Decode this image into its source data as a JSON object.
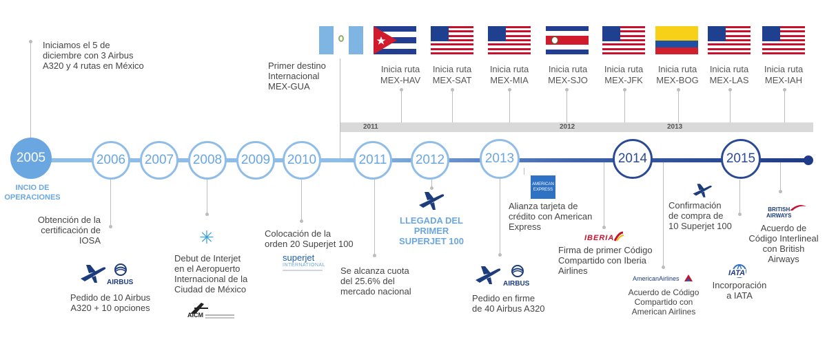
{
  "colors": {
    "light_blue": "#6aa6df",
    "circle_light_border": "#8fbde8",
    "dark_blue": "#2b4a94",
    "navy": "#1d3c7c",
    "gray_band": "#d9d9d9",
    "connector_gray": "#bcbcbc"
  },
  "years": [
    "2005",
    "2006",
    "2007",
    "2008",
    "2009",
    "2010",
    "2011",
    "2012",
    "2013",
    "2014",
    "2015"
  ],
  "band_years": [
    "2011",
    "2012",
    "2013"
  ],
  "events": {
    "inicio_title": "INCIO DE\nOPERACIONES",
    "inicio_text": "Iniciamos el 5 de\ndiciembre con 3 Airbus\nA320 y 4 rutas en México",
    "iosa_text": "Obtención de la\ncertificación de\nIOSA",
    "pedido10_text": "Pedido de 10 Airbus\nA320 + 10 opciones",
    "interjet_text": "Debut de Interjet\nen el Aeropuerto\nInternacional de la\nCiudad de México",
    "superjet20_text": "Colocación de la\norden 20 Superjet 100",
    "destino_text": "Primer destino\nInternacional\nMEX-GUA",
    "cuota_text": "Se alcanza cuota\ndel 25.6% del\nmercado nacional",
    "llegada_title": "LLEGADA DEL\nPRIMER\nSUPERJET 100",
    "pedido40_text": "Pedido en firme\nde 40 Airbus A320",
    "amex_text": "Alianza tarjeta de\ncrédito con American\nExpress",
    "iberia_text": "Firma de primer Código\nCompartido con Iberia\nAirlines",
    "aa_text": "Acuerdo de Código\nCompartido con\nAmerican Airlines",
    "superjet10_text": "Confirmación\nde compra de\n10 Superjet 100",
    "iata_text": "Incorporación\na IATA",
    "ba_text": "Acuerdo de\nCódigo Interlineal\ncon British\nAirways"
  },
  "routes": [
    {
      "label": "Inicia ruta\nMEX-HAV",
      "flag": "cuba"
    },
    {
      "label": "Inicia ruta\nMEX-SAT",
      "flag": "usa"
    },
    {
      "label": "Inicia ruta\nMEX-MIA",
      "flag": "usa"
    },
    {
      "label": "Inicia ruta\nMEX-SJO",
      "flag": "costa-rica"
    },
    {
      "label": "Inicia ruta\nMEX-JFK",
      "flag": "usa"
    },
    {
      "label": "Inicia ruta\nMEX-BOG",
      "flag": "colombia"
    },
    {
      "label": "Inicia ruta\nMEX-LAS",
      "flag": "usa"
    },
    {
      "label": "Inicia ruta\nMEX-IAH",
      "flag": "usa"
    }
  ],
  "logos": {
    "airbus": "AIRBUS",
    "superjet_top": "superjet",
    "superjet_bottom": "INTERNATIONAL",
    "aicm": "AICM",
    "amex_top": "AMERICAN",
    "amex_bottom": "EXPRESS",
    "iberia": "IBERIA",
    "american_airlines": "AmericanAirlines",
    "iata": "IATA",
    "british_airways": "BRITISH\nAIRWAYS"
  }
}
